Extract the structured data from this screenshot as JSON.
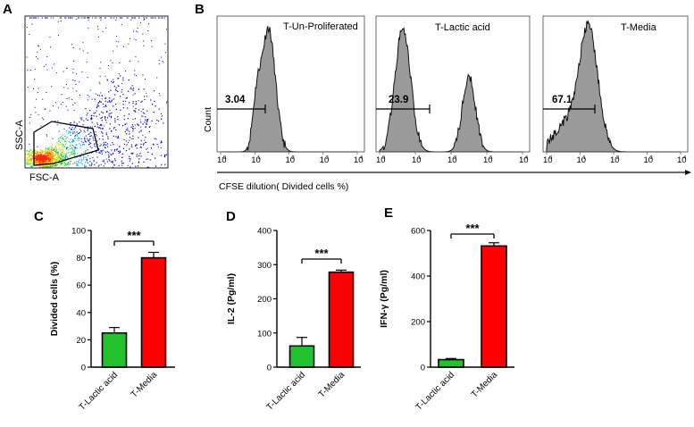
{
  "panels": {
    "a": "A",
    "b": "B",
    "c": "C",
    "d": "D",
    "e": "E"
  },
  "scatter": {
    "xlabel": "FSC-A",
    "ylabel": "SSC-A",
    "colors": [
      "#0000cc",
      "#1a33ff",
      "#00b4ff",
      "#18d050",
      "#c8e61e",
      "#ff9a00",
      "#ff2a00"
    ]
  },
  "histograms": {
    "ylabel": "Count",
    "xlabel": "CFSE dilution( Divided cells %)",
    "tick_labels": [
      "10",
      "10",
      "10",
      "10",
      "10"
    ],
    "tick_exponents": [
      "0",
      "1",
      "2",
      "3",
      "4"
    ]
  },
  "chart_data": [
    {
      "type": "area",
      "title": "T-Un-Proliferated",
      "gate_value": "3.04",
      "x_scale": "log",
      "xlim": [
        1,
        10000
      ],
      "peaks_log10": [
        1.1,
        1.35
      ]
    },
    {
      "type": "area",
      "title": "T-Lactic acid",
      "gate_value": "23.9",
      "x_scale": "log",
      "xlim": [
        1,
        10000
      ],
      "peaks_log10": [
        0.65,
        2.5
      ]
    },
    {
      "type": "area",
      "title": "T-Media",
      "gate_value": "67.1",
      "x_scale": "log",
      "xlim": [
        1,
        10000
      ],
      "peaks_log10": [
        1.2
      ]
    },
    {
      "type": "bar",
      "categories": [
        "T-Lactic acid",
        "T-Media"
      ],
      "values": [
        25,
        80
      ],
      "errors": [
        4,
        4
      ],
      "colors": [
        "#22c22e",
        "#ff0000"
      ],
      "ylabel": "Divided cells (%)",
      "ylim": [
        0,
        100
      ],
      "yticks": [
        "0",
        "20",
        "40",
        "60",
        "80",
        "100"
      ],
      "significance": "***"
    },
    {
      "type": "bar",
      "categories": [
        "T-Lactic acid",
        "T-Media"
      ],
      "values": [
        62,
        278
      ],
      "errors": [
        25,
        6
      ],
      "colors": [
        "#22c22e",
        "#ff0000"
      ],
      "ylabel": "IL-2 (Pg/ml)",
      "ylim": [
        0,
        400
      ],
      "yticks": [
        "0",
        "100",
        "200",
        "300",
        "400"
      ],
      "significance": "***"
    },
    {
      "type": "bar",
      "categories": [
        "T-Lactic acid",
        "T-Media"
      ],
      "values": [
        33,
        532
      ],
      "errors": [
        5,
        14
      ],
      "colors": [
        "#22c22e",
        "#ff0000"
      ],
      "ylabel": "IFN-γ (Pg/ml)",
      "ylim": [
        0,
        600
      ],
      "yticks": [
        "0",
        "200",
        "400",
        "600"
      ],
      "significance": "***"
    }
  ]
}
